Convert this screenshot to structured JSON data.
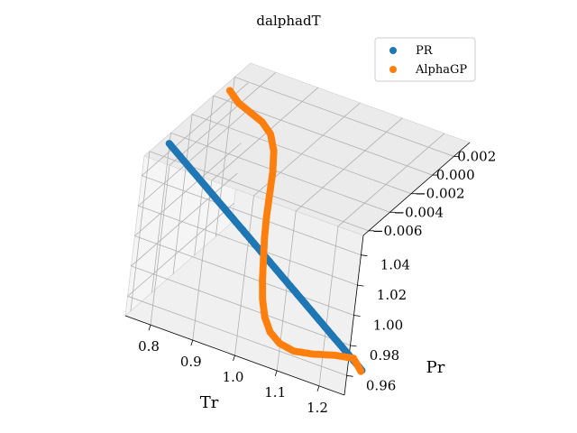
{
  "chart_data": {
    "type": "scatter",
    "title": "dalphadT",
    "xlabel": "Tr",
    "ylabel": "Pr",
    "zlabel": "",
    "xlim": [
      0.74,
      1.26
    ],
    "ylim": [
      0.947,
      1.053
    ],
    "zlim": [
      -0.0065,
      0.0035
    ],
    "xticks": [
      "0.8",
      "0.9",
      "1.0",
      "1.1",
      "1.2"
    ],
    "yticks": [
      "0.96",
      "0.98",
      "1.00",
      "1.02",
      "1.04"
    ],
    "zticks": [
      "−0.006",
      "−0.004",
      "−0.002",
      "0.000",
      "0.002"
    ],
    "legend_position": "upper-right",
    "series": [
      {
        "name": "PR",
        "color": "#1f77b4",
        "x": [
          0.75,
          0.8,
          0.85,
          0.9,
          0.95,
          1.0,
          1.05,
          1.1,
          1.15,
          1.2,
          1.25
        ],
        "y": [
          1.05,
          1.04,
          1.03,
          1.02,
          1.01,
          1.0,
          0.99,
          0.98,
          0.97,
          0.96,
          0.95
        ],
        "z": [
          -0.0045,
          -0.0045,
          -0.0045,
          -0.0045,
          -0.0045,
          -0.0045,
          -0.0045,
          -0.0045,
          -0.0045,
          -0.0045,
          -0.0045
        ]
      },
      {
        "name": "AlphaGP",
        "color": "#ff7f0e",
        "x": [
          0.75,
          0.775,
          0.8,
          0.825,
          0.85,
          0.875,
          0.9,
          0.925,
          0.95,
          0.975,
          1.0,
          1.025,
          1.05,
          1.075,
          1.1,
          1.125,
          1.15,
          1.175,
          1.2,
          1.225,
          1.25
        ],
        "y": [
          1.05,
          1.045,
          1.04,
          1.035,
          1.03,
          1.025,
          1.02,
          1.015,
          1.01,
          1.005,
          1.0,
          0.995,
          0.99,
          0.985,
          0.98,
          0.975,
          0.97,
          0.965,
          0.96,
          0.955,
          0.95
        ],
        "z": [
          0.0012,
          0.0011,
          0.0013,
          0.0015,
          0.0014,
          0.0008,
          -0.0002,
          -0.0014,
          -0.0026,
          -0.0037,
          -0.0047,
          -0.0057,
          -0.0066,
          -0.0073,
          -0.0077,
          -0.0077,
          -0.0073,
          -0.0064,
          -0.0053,
          -0.0044,
          -0.0046
        ]
      }
    ]
  }
}
